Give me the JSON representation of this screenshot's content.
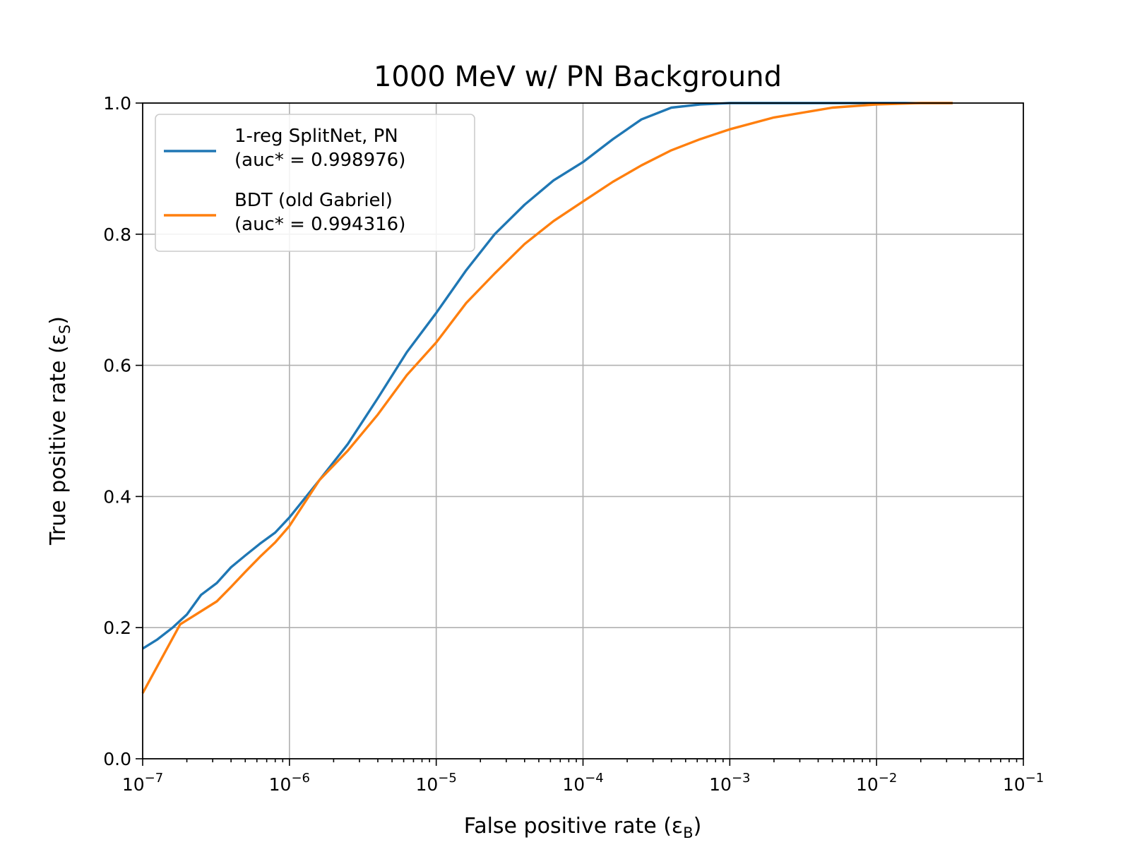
{
  "chart_data": {
    "type": "line",
    "title": "1000 MeV w/ PN Background",
    "xlabel": "False positive rate (ε",
    "xlabel_sub": "B",
    "xlabel_close": ")",
    "ylabel": "True positive rate (ε",
    "ylabel_sub": "S",
    "ylabel_close": ")",
    "xscale": "log",
    "xlim": [
      1e-07,
      0.1
    ],
    "ylim": [
      0,
      1
    ],
    "grid": true,
    "legend_position": "upper-left",
    "x_tick_labels": [
      {
        "base": "10",
        "exp": "−7",
        "value": 1e-07
      },
      {
        "base": "10",
        "exp": "−6",
        "value": 1e-06
      },
      {
        "base": "10",
        "exp": "−5",
        "value": 1e-05
      },
      {
        "base": "10",
        "exp": "−4",
        "value": 0.0001
      },
      {
        "base": "10",
        "exp": "−3",
        "value": 0.001
      },
      {
        "base": "10",
        "exp": "−2",
        "value": 0.01
      },
      {
        "base": "10",
        "exp": "−1",
        "value": 0.1
      }
    ],
    "y_tick_labels": [
      {
        "label": "0.0",
        "value": 0.0
      },
      {
        "label": "0.2",
        "value": 0.2
      },
      {
        "label": "0.4",
        "value": 0.4
      },
      {
        "label": "0.6",
        "value": 0.6
      },
      {
        "label": "0.8",
        "value": 0.8
      },
      {
        "label": "1.0",
        "value": 1.0
      }
    ],
    "series": [
      {
        "name": "1-reg SplitNet, PN",
        "name_line2": "(auc* = 0.998976)",
        "color": "#1f77b4",
        "x": [
          1e-07,
          1.26e-07,
          1.6e-07,
          2e-07,
          2.5e-07,
          3.2e-07,
          4e-07,
          5e-07,
          6.3e-07,
          8e-07,
          1e-06,
          1.6e-06,
          2.5e-06,
          4e-06,
          6.3e-06,
          1e-05,
          1.6e-05,
          2.5e-05,
          4e-05,
          6.3e-05,
          0.0001,
          0.00016,
          0.00025,
          0.0004,
          0.00063,
          0.001,
          0.002,
          0.005,
          0.01,
          0.033
        ],
        "y": [
          0.168,
          0.182,
          0.2,
          0.22,
          0.25,
          0.268,
          0.292,
          0.31,
          0.328,
          0.345,
          0.368,
          0.425,
          0.48,
          0.55,
          0.62,
          0.68,
          0.745,
          0.8,
          0.845,
          0.882,
          0.91,
          0.945,
          0.975,
          0.993,
          0.998,
          1.0,
          1.0,
          1.0,
          1.0,
          1.0
        ]
      },
      {
        "name": "BDT (old Gabriel)",
        "name_line2": "(auc* = 0.994316)",
        "color": "#ff7f0e",
        "x": [
          1e-07,
          1.8e-07,
          2.5e-07,
          3.2e-07,
          4e-07,
          5e-07,
          6.3e-07,
          8e-07,
          1e-06,
          1.6e-06,
          2.5e-06,
          4e-06,
          6.3e-06,
          1e-05,
          1.6e-05,
          2.5e-05,
          4e-05,
          6.3e-05,
          0.0001,
          0.00016,
          0.00025,
          0.0004,
          0.00063,
          0.001,
          0.002,
          0.005,
          0.01,
          0.02,
          0.033
        ],
        "y": [
          0.1,
          0.205,
          0.225,
          0.24,
          0.262,
          0.285,
          0.308,
          0.33,
          0.355,
          0.425,
          0.47,
          0.525,
          0.585,
          0.635,
          0.695,
          0.74,
          0.785,
          0.82,
          0.85,
          0.88,
          0.905,
          0.928,
          0.945,
          0.96,
          0.978,
          0.993,
          0.998,
          1.0,
          1.0
        ]
      }
    ]
  }
}
